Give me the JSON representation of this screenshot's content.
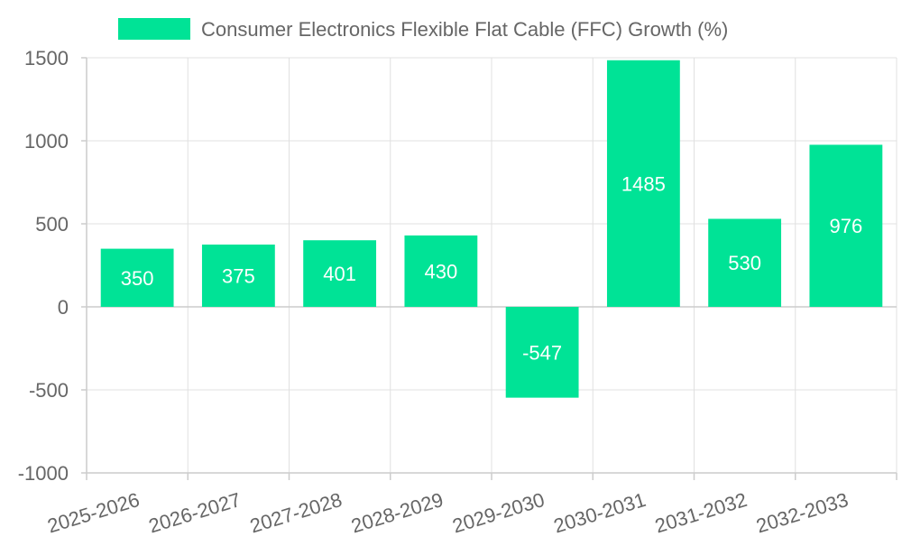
{
  "chart_data": {
    "type": "bar",
    "title": "",
    "xlabel": "",
    "ylabel": "",
    "legend": {
      "position": "top-center",
      "entries": [
        "Consumer Electronics Flexible Flat Cable (FFC) Growth (%)"
      ]
    },
    "categories": [
      "2025-2026",
      "2026-2027",
      "2027-2028",
      "2028-2029",
      "2029-2030",
      "2030-2031",
      "2031-2032",
      "2032-2033"
    ],
    "series": [
      {
        "name": "Consumer Electronics Flexible Flat Cable (FFC) Growth (%)",
        "values": [
          350,
          375,
          401,
          430,
          -547,
          1485,
          530,
          976
        ]
      }
    ],
    "data_labels": [
      "350",
      "375",
      "401",
      "430",
      "-547",
      "1485",
      "530",
      "976"
    ],
    "y_ticks": [
      1500,
      1000,
      500,
      0,
      -500,
      -1000
    ],
    "y_tick_labels": [
      "1500",
      "1000",
      "500",
      "0",
      "-500",
      "-1000"
    ],
    "ylim": [
      -1000,
      1500
    ],
    "grid": true,
    "colors": {
      "bar": "#00e396",
      "grid": "#e0e0e0",
      "axis": "#cccccc",
      "text": "#666666",
      "data_label": "#ffffff"
    }
  }
}
